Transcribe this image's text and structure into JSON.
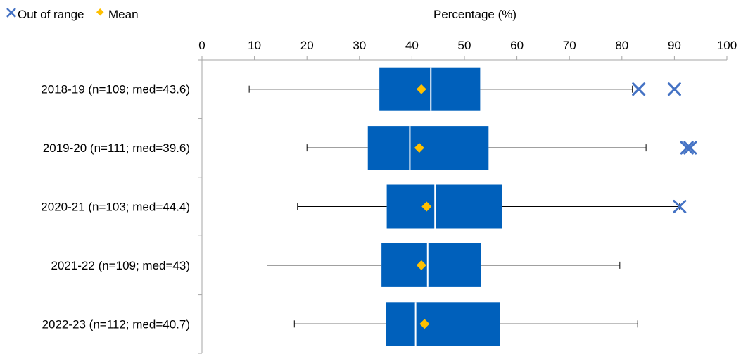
{
  "chart_data": {
    "type": "boxplot",
    "orientation": "horizontal",
    "title": "",
    "xlabel": "Percentage (%)",
    "ylabel": "",
    "xlim": [
      0,
      100
    ],
    "x_ticks": [
      0,
      10,
      20,
      30,
      40,
      50,
      60,
      70,
      80,
      90,
      100
    ],
    "x_axis_position": "top",
    "grid": false,
    "legend": {
      "position": "top-left",
      "entries": [
        {
          "label": "Out of range",
          "marker": "x",
          "color": "#4472C4"
        },
        {
          "label": "Mean",
          "marker": "diamond",
          "color": "#FFC000"
        }
      ]
    },
    "colors": {
      "box": "#0060BB",
      "median": "#ffffff",
      "whisker": "#000000",
      "outlier": "#4472C4",
      "mean": "#FFC000"
    },
    "categories": [
      "2018-19 (n=109; med=43.6)",
      "2019-20 (n=111; med=39.6)",
      "2020-21 (n=103; med=44.4)",
      "2021-22 (n=109; med=43)",
      "2022-23 (n=112; med=40.7)"
    ],
    "boxes": [
      {
        "min": 9.0,
        "q1": 33.8,
        "median": 43.6,
        "q3": 53.0,
        "max": 82.0,
        "mean": 41.8,
        "outliers": [
          83.2,
          90.0
        ]
      },
      {
        "min": 20.0,
        "q1": 31.6,
        "median": 39.6,
        "q3": 54.6,
        "max": 84.6,
        "mean": 41.4,
        "outliers": [
          92.4,
          93.0
        ]
      },
      {
        "min": 18.2,
        "q1": 35.2,
        "median": 44.4,
        "q3": 57.2,
        "max": 91.0,
        "mean": 42.8,
        "outliers": [
          91.0
        ]
      },
      {
        "min": 12.4,
        "q1": 34.2,
        "median": 43.0,
        "q3": 53.2,
        "max": 79.6,
        "mean": 41.8,
        "outliers": []
      },
      {
        "min": 17.6,
        "q1": 35.0,
        "median": 40.7,
        "q3": 56.8,
        "max": 83.0,
        "mean": 42.4,
        "outliers": []
      }
    ]
  }
}
